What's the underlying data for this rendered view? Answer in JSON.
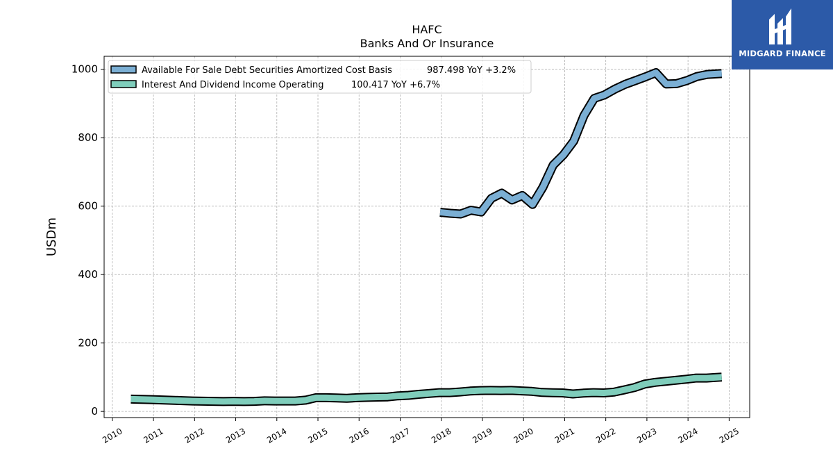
{
  "chart_data": {
    "type": "line",
    "title": "HAFC",
    "subtitle": "Banks And Or Insurance",
    "ylabel": "USDm",
    "xlabel": "",
    "xlim": [
      2009.8,
      2025.5
    ],
    "ylim": [
      -18,
      1038
    ],
    "xticks": [
      "2010",
      "2011",
      "2012",
      "2013",
      "2014",
      "2015",
      "2016",
      "2017",
      "2018",
      "2019",
      "2020",
      "2021",
      "2022",
      "2023",
      "2024",
      "2025"
    ],
    "yticks": [
      "0",
      "200",
      "400",
      "600",
      "800",
      "1000"
    ],
    "grid": true,
    "legend_position": "top-left",
    "series": [
      {
        "name": "Available For Sale Debt Securities Amortized Cost Basis",
        "legend_value": "987.498 YoY +3.2%",
        "color": "#7bafd4",
        "x": [
          2017.97,
          2018.22,
          2018.47,
          2018.72,
          2018.97,
          2019.22,
          2019.47,
          2019.72,
          2019.97,
          2020.22,
          2020.47,
          2020.72,
          2020.97,
          2021.22,
          2021.47,
          2021.72,
          2021.97,
          2022.22,
          2022.47,
          2022.72,
          2022.97,
          2023.22,
          2023.47,
          2023.72,
          2023.97,
          2024.22,
          2024.47,
          2024.82
        ],
        "y": [
          582,
          579,
          577,
          588,
          583,
          623,
          638,
          618,
          631,
          605,
          655,
          720,
          750,
          790,
          865,
          915,
          925,
          942,
          956,
          967,
          978,
          990,
          957,
          958,
          967,
          979,
          985,
          987.5
        ]
      },
      {
        "name": "Interest And Dividend Income Operating",
        "legend_value": "100.417 YoY +6.7%",
        "color": "#7fcdbb",
        "x": [
          2010.45,
          2010.7,
          2010.95,
          2011.2,
          2011.45,
          2011.7,
          2011.95,
          2012.2,
          2012.45,
          2012.7,
          2012.95,
          2013.2,
          2013.45,
          2013.7,
          2013.95,
          2014.2,
          2014.45,
          2014.7,
          2014.95,
          2015.2,
          2015.45,
          2015.7,
          2015.95,
          2016.2,
          2016.45,
          2016.7,
          2016.95,
          2017.2,
          2017.45,
          2017.7,
          2017.95,
          2018.2,
          2018.45,
          2018.7,
          2018.95,
          2019.2,
          2019.45,
          2019.7,
          2019.95,
          2020.2,
          2020.45,
          2020.7,
          2020.95,
          2021.2,
          2021.45,
          2021.7,
          2021.95,
          2022.2,
          2022.45,
          2022.7,
          2022.95,
          2023.2,
          2023.45,
          2023.7,
          2023.95,
          2024.2,
          2024.45,
          2024.82
        ],
        "y": [
          36,
          35.5,
          34.5,
          33.5,
          32.5,
          31.5,
          30.5,
          30,
          29.5,
          29,
          29.5,
          29,
          29.5,
          31,
          30.5,
          30.5,
          30.5,
          33,
          40,
          40,
          39.5,
          38.5,
          40,
          41,
          42,
          42.5,
          45.5,
          47,
          50,
          52.5,
          55,
          55,
          57,
          59.5,
          61,
          61.5,
          61,
          61.5,
          60,
          58.5,
          55.5,
          54.5,
          54,
          51,
          53.5,
          55,
          54,
          56.5,
          63,
          70,
          80,
          85,
          88,
          91,
          94,
          97.5,
          97.5,
          100.4
        ]
      }
    ]
  },
  "logo": {
    "text": "MIDGARD FINANCE"
  }
}
